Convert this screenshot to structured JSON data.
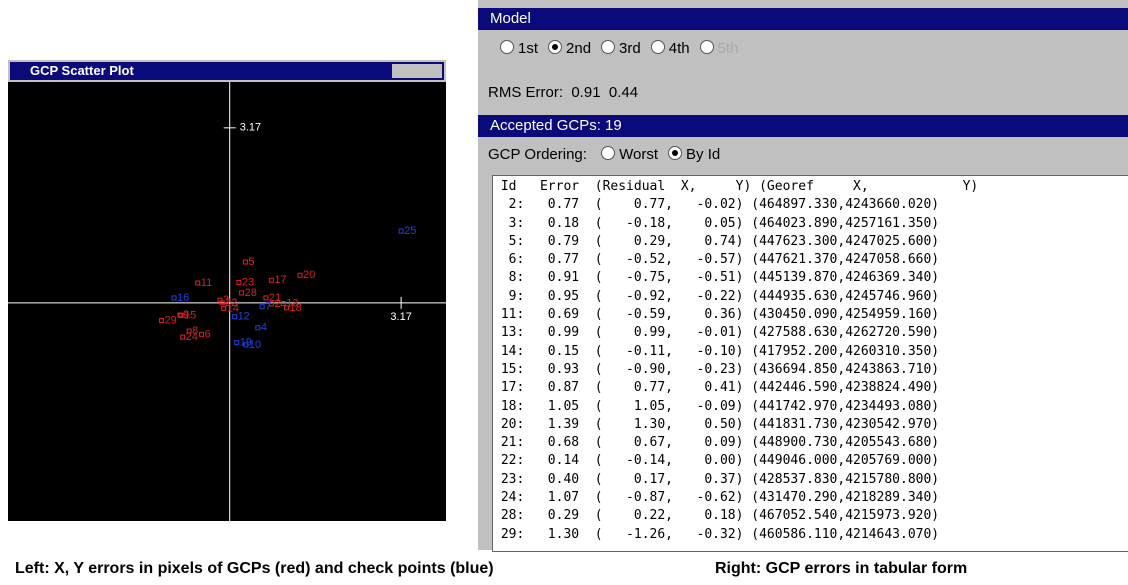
{
  "chart_data": {
    "type": "scatter",
    "title": "GCP Scatter Plot",
    "xlim": [
      -4.1,
      4.0
    ],
    "ylim": [
      -3.95,
      4.0
    ],
    "xticks": [
      3.17
    ],
    "yticks": [
      3.17
    ],
    "series": [
      {
        "color": "#e02020",
        "x": [
          0.77,
          -0.18,
          0.29,
          -0.52,
          -0.75,
          -0.92,
          -0.59,
          0.99,
          -0.11,
          -0.9,
          0.77,
          1.05,
          1.3,
          0.67,
          -0.14,
          0.17,
          -0.87,
          0.22,
          -1.26
        ],
        "y": [
          -0.02,
          0.05,
          0.74,
          -0.57,
          -0.51,
          -0.22,
          0.36,
          -0.01,
          -0.1,
          -0.23,
          0.41,
          -0.09,
          0.5,
          0.09,
          0.0,
          0.37,
          -0.62,
          0.18,
          -0.32
        ],
        "labels": [
          "2",
          "3",
          "5",
          "6",
          "8",
          "9",
          "11",
          "13",
          "14",
          "15",
          "17",
          "18",
          "20",
          "21",
          "22",
          "23",
          "24",
          "28",
          "29"
        ]
      },
      {
        "color": "#2040e0",
        "x": [
          3.17,
          -1.03,
          0.09,
          0.52,
          0.13,
          0.3,
          0.6
        ],
        "y": [
          1.3,
          0.09,
          -0.25,
          -0.45,
          -0.72,
          -0.76,
          -0.07
        ],
        "labels": [
          "25",
          "16",
          "12",
          "4",
          "19",
          "10",
          "7"
        ]
      }
    ]
  },
  "model_panel": {
    "title": "Model",
    "options": [
      "1st",
      "2nd",
      "3rd",
      "4th",
      "5th"
    ],
    "selected": 1,
    "disabled": 4,
    "rms_label": "RMS Error:",
    "rms_x": "0.91",
    "rms_y": "0.44",
    "accepted": "Accepted GCPs: 19",
    "ordering_label": "GCP Ordering:",
    "ordering_options": [
      "Worst",
      "By Id"
    ],
    "ordering_selected": 1
  },
  "table": {
    "header": " Id   Error  (Residual  X,     Y) (Georef     X,            Y)",
    "rows": [
      "  2:   0.77  (    0.77,   -0.02) (464897.330,4243660.020)",
      "  3:   0.18  (   -0.18,    0.05) (464023.890,4257161.350)",
      "  5:   0.79  (    0.29,    0.74) (447623.300,4247025.600)",
      "  6:   0.77  (   -0.52,   -0.57) (447621.370,4247058.660)",
      "  8:   0.91  (   -0.75,   -0.51) (445139.870,4246369.340)",
      "  9:   0.95  (   -0.92,   -0.22) (444935.630,4245746.960)",
      " 11:   0.69  (   -0.59,    0.36) (430450.090,4254959.160)",
      " 13:   0.99  (    0.99,   -0.01) (427588.630,4262720.590)",
      " 14:   0.15  (   -0.11,   -0.10) (417952.200,4260310.350)",
      " 15:   0.93  (   -0.90,   -0.23) (436694.850,4243863.710)",
      " 17:   0.87  (    0.77,    0.41) (442446.590,4238824.490)",
      " 18:   1.05  (    1.05,   -0.09) (441742.970,4234493.080)",
      " 20:   1.39  (    1.30,    0.50) (441831.730,4230542.970)",
      " 21:   0.68  (    0.67,    0.09) (448900.730,4205543.680)",
      " 22:   0.14  (   -0.14,    0.00) (449046.000,4205769.000)",
      " 23:   0.40  (    0.17,    0.37) (428537.830,4215780.800)",
      " 24:   1.07  (   -0.87,   -0.62) (431470.290,4218289.340)",
      " 28:   0.29  (    0.22,    0.18) (467052.540,4215973.920)",
      " 29:   1.30  (   -1.26,   -0.32) (460586.110,4214643.070)"
    ]
  },
  "captions": {
    "left": "Left: X, Y errors in pixels of GCPs (red) and check points (blue)",
    "right": "Right: GCP errors in tabular form"
  }
}
